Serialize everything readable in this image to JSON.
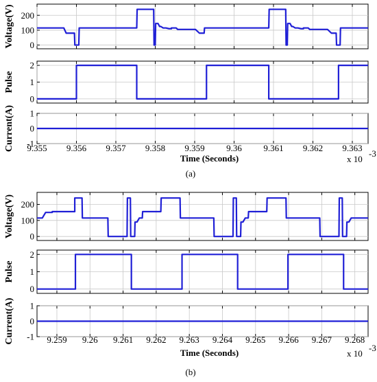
{
  "chart_data": [
    {
      "type": "line",
      "caption": "(a)",
      "xlabel": "Time (Seconds)",
      "x_multiplier": "x 10",
      "x_multiplier_exp": "-3",
      "xlim": [
        9.355,
        9.3634
      ],
      "xticks": [
        9.355,
        9.356,
        9.357,
        9.358,
        9.359,
        9.36,
        9.361,
        9.362,
        9.363
      ],
      "xtick_labels": [
        "9.355",
        "9.356",
        "9.357",
        "9.358",
        "9.359",
        "9.36",
        "9.361",
        "9.362",
        "9.363"
      ],
      "grid": true,
      "line_color": "#1f1fd6",
      "panels": [
        {
          "ylabel": "Voltage(V)",
          "ylim": [
            -25,
            275
          ],
          "yticks": [
            0,
            100,
            200
          ],
          "ytick_labels": [
            "0",
            "100",
            "200"
          ],
          "x": [
            9.355,
            9.35568,
            9.35574,
            9.35595,
            9.35596,
            9.35606,
            9.35607,
            9.35753,
            9.35754,
            9.35796,
            9.35797,
            9.358,
            9.35801,
            9.35807,
            9.35811,
            9.35814,
            9.3582,
            9.35827,
            9.35835,
            9.35841,
            9.35841,
            9.35853,
            9.35857,
            9.35902,
            9.35912,
            9.35924,
            9.35925,
            9.36088,
            9.36089,
            9.36131,
            9.36132,
            9.36135,
            9.36136,
            9.36142,
            9.36146,
            9.36149,
            9.36155,
            9.36162,
            9.3617,
            9.36176,
            9.36176,
            9.36188,
            9.36192,
            9.36237,
            9.36247,
            9.36259,
            9.3626,
            9.36269,
            9.3627,
            9.3634
          ],
          "y": [
            115,
            115,
            80,
            80,
            0,
            0,
            115,
            115,
            240,
            240,
            0,
            0,
            145,
            145,
            125,
            125,
            115,
            115,
            110,
            110,
            115,
            115,
            105,
            105,
            80,
            80,
            115,
            115,
            240,
            240,
            0,
            0,
            145,
            145,
            125,
            125,
            115,
            115,
            110,
            110,
            115,
            115,
            105,
            105,
            80,
            80,
            0,
            0,
            115,
            115
          ]
        },
        {
          "ylabel": "Pulse",
          "ylim": [
            -0.25,
            2.25
          ],
          "yticks": [
            0,
            1,
            2
          ],
          "ytick_labels": [
            "0",
            "1",
            "2"
          ],
          "x": [
            9.355,
            9.356,
            9.356,
            9.35753,
            9.35753,
            9.3593,
            9.3593,
            9.36088,
            9.36088,
            9.36265,
            9.36265,
            9.3634
          ],
          "y": [
            0,
            0,
            2,
            2,
            0,
            0,
            2,
            2,
            0,
            0,
            2,
            2
          ]
        },
        {
          "ylabel": "Current(A)",
          "ylim": [
            -1,
            1
          ],
          "yticks": [
            -1,
            0,
            1
          ],
          "ytick_labels": [
            "-1",
            "0",
            "1"
          ],
          "x": [
            9.355,
            9.3634
          ],
          "y": [
            0,
            0
          ]
        }
      ]
    },
    {
      "type": "line",
      "caption": "(b)",
      "xlabel": "Time (Seconds)",
      "x_multiplier": "x 10",
      "x_multiplier_exp": "-3",
      "xlim": [
        9.2584,
        9.2684
      ],
      "xticks": [
        9.259,
        9.26,
        9.261,
        9.262,
        9.263,
        9.264,
        9.265,
        9.266,
        9.267,
        9.268
      ],
      "xtick_labels": [
        "9.259",
        "9.26",
        "9.261",
        "9.262",
        "9.263",
        "9.264",
        "9.265",
        "9.266",
        "9.267",
        "9.268"
      ],
      "grid": true,
      "line_color": "#1f1fd6",
      "panels": [
        {
          "ylabel": "Voltage(V)",
          "ylim": [
            -25,
            275
          ],
          "yticks": [
            0,
            100,
            200
          ],
          "ytick_labels": [
            "0",
            "100",
            "200"
          ],
          "x": [
            9.2584,
            9.25856,
            9.25866,
            9.25886,
            9.25886,
            9.25954,
            9.25954,
            9.25976,
            9.25977,
            9.26054,
            9.26055,
            9.26112,
            9.26113,
            9.26122,
            9.26123,
            9.26135,
            9.26136,
            9.26142,
            9.26149,
            9.26158,
            9.26159,
            9.26214,
            9.26215,
            9.26272,
            9.26273,
            9.26296,
            9.26297,
            9.26374,
            9.26375,
            9.26432,
            9.26433,
            9.26442,
            9.26443,
            9.26455,
            9.26456,
            9.26462,
            9.26469,
            9.26478,
            9.26479,
            9.26534,
            9.26535,
            9.26592,
            9.26593,
            9.26616,
            9.26617,
            9.26694,
            9.26695,
            9.26752,
            9.26753,
            9.26762,
            9.26763,
            9.26775,
            9.26776,
            9.26782,
            9.26789,
            9.2684
          ],
          "y": [
            115,
            115,
            150,
            150,
            155,
            155,
            240,
            240,
            115,
            115,
            0,
            0,
            240,
            240,
            0,
            0,
            90,
            90,
            115,
            115,
            155,
            155,
            240,
            240,
            115,
            115,
            115,
            115,
            0,
            0,
            240,
            240,
            0,
            0,
            90,
            90,
            115,
            115,
            155,
            155,
            240,
            240,
            115,
            115,
            115,
            115,
            0,
            0,
            240,
            240,
            0,
            0,
            90,
            90,
            115,
            115
          ]
        },
        {
          "ylabel": "Pulse",
          "ylim": [
            -0.25,
            2.25
          ],
          "yticks": [
            0,
            1,
            2
          ],
          "ytick_labels": [
            "0",
            "1",
            "2"
          ],
          "x": [
            9.2584,
            9.25956,
            9.25956,
            9.26125,
            9.26125,
            9.26278,
            9.26278,
            9.26446,
            9.26446,
            9.26598,
            9.26598,
            9.26766,
            9.26766,
            9.2684
          ],
          "y": [
            0,
            0,
            2,
            2,
            0,
            0,
            2,
            2,
            0,
            0,
            2,
            2,
            0,
            0
          ]
        },
        {
          "ylabel": "Current(A)",
          "ylim": [
            -1,
            1
          ],
          "yticks": [
            -1,
            0,
            1
          ],
          "ytick_labels": [
            "-1",
            "0",
            "1"
          ],
          "x": [
            9.2584,
            9.2684
          ],
          "y": [
            0,
            0
          ]
        }
      ]
    }
  ]
}
